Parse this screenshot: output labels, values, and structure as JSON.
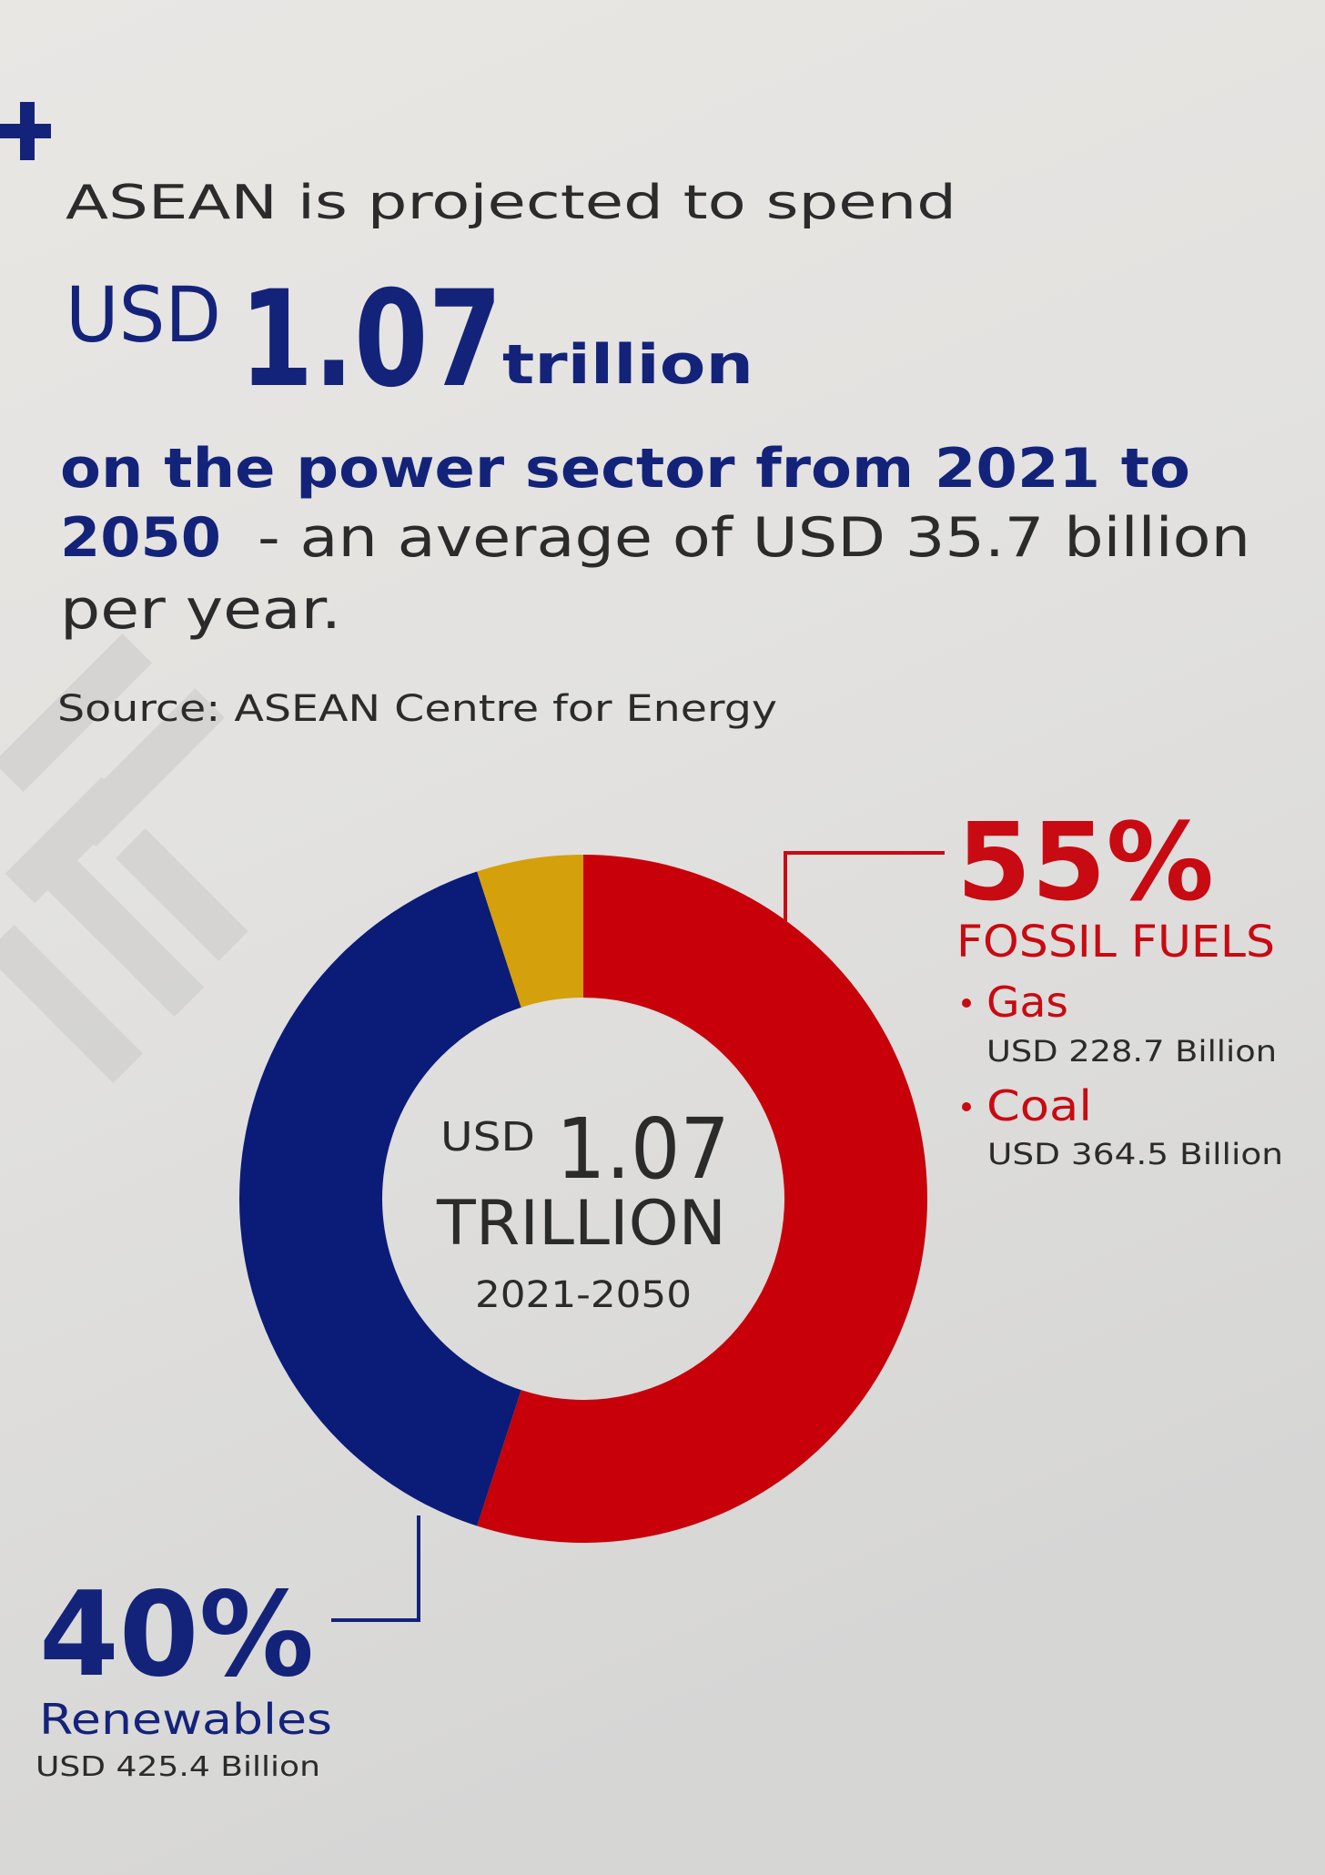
{
  "headline": {
    "intro": "ASEAN is projected to spend",
    "currency": "USD",
    "amount": "1.07",
    "unit": "trillion",
    "line_1": "on the power sector from 2021 to",
    "line_2_bold": "2050",
    "line_2": "- an average of USD 35.7 billion",
    "line_3": "per year.",
    "source": "Source: ASEAN Centre for Energy"
  },
  "chart_data": {
    "type": "donut",
    "categories": [
      "FOSSIL FUELS",
      "Renewables",
      null
    ],
    "values": [
      55,
      40,
      5
    ],
    "value_labels": [
      "55%",
      "40%",
      null
    ],
    "colors": [
      "#c8000a",
      "#0b1b78",
      "#d4a00c"
    ],
    "center_label": {
      "currency": "USD",
      "amount": "1.07",
      "unit": "TRILLION",
      "period": "2021-2050"
    },
    "breakdown": {
      "fossil": [
        {
          "name": "Gas",
          "amount": "USD 228.7 Billion"
        },
        {
          "name": "Coal",
          "amount": "USD 364.5 Billion"
        }
      ],
      "renewables": "USD 425.4 Billion"
    }
  }
}
